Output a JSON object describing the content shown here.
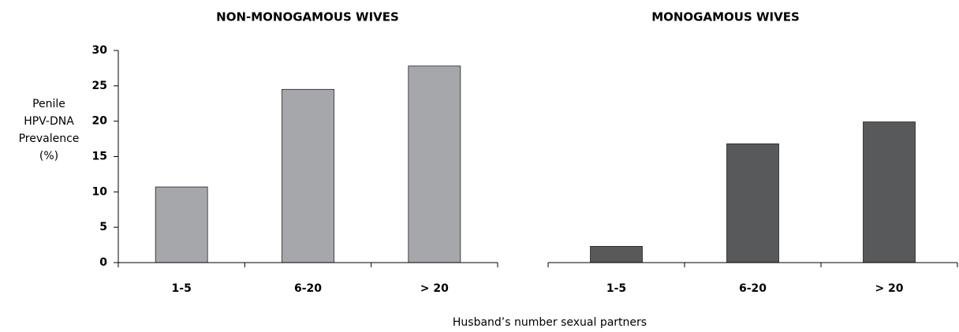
{
  "chart_data": [
    {
      "type": "bar",
      "title": "NON-MONOGAMOUS WIVES",
      "categories": [
        "1-5",
        "6-20",
        "> 20"
      ],
      "values": [
        10.7,
        24.5,
        27.8
      ],
      "color": "#a6a7ab",
      "ylim": [
        0,
        30
      ],
      "yticks": [
        0,
        5,
        10,
        15,
        20,
        25,
        30
      ]
    },
    {
      "type": "bar",
      "title": "MONOGAMOUS WIVES",
      "categories": [
        "1-5",
        "6-20",
        "> 20"
      ],
      "values": [
        2.3,
        16.8,
        19.9
      ],
      "color": "#58595b",
      "ylim": [
        0,
        30
      ]
    }
  ],
  "ylabel": [
    "Penile",
    "HPV-DNA",
    "Prevalence",
    "(%)"
  ],
  "xlabel": "Husband’s number sexual partners"
}
